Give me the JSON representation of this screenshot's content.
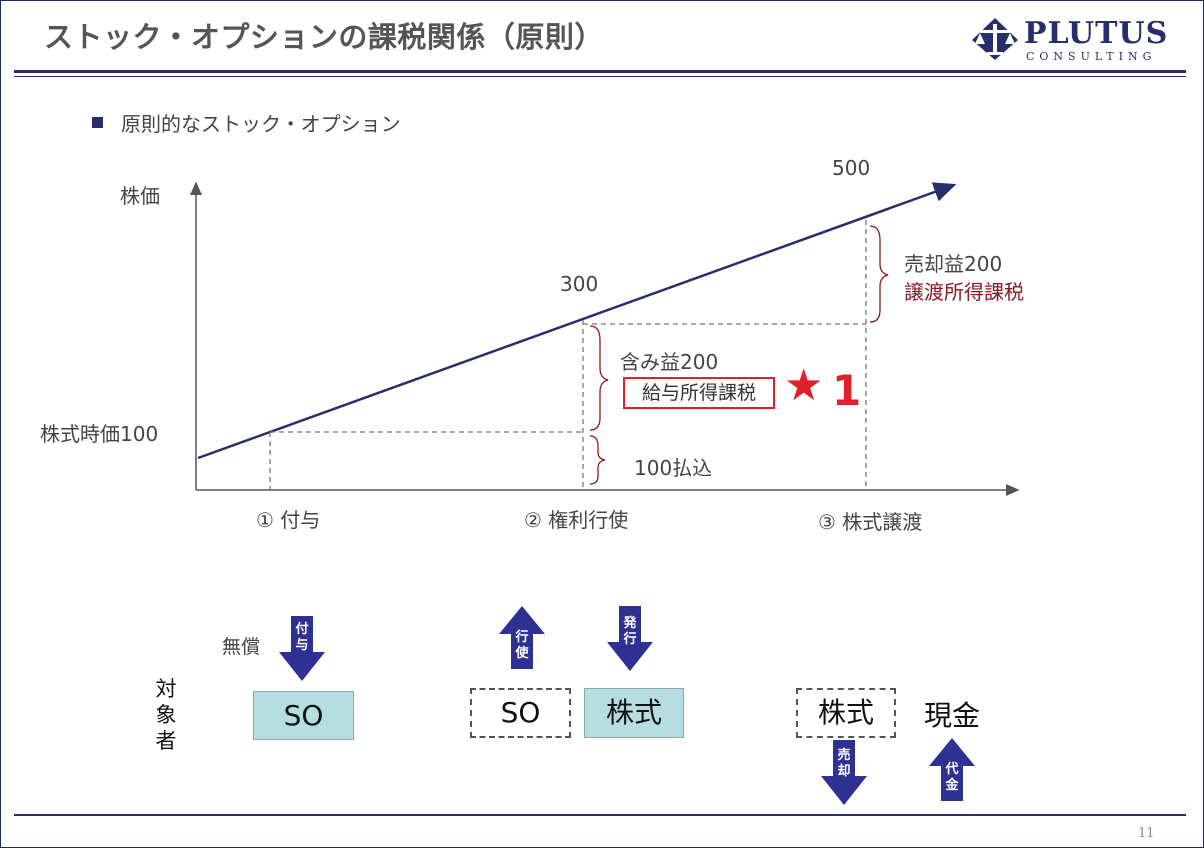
{
  "header": {
    "title": "ストック・オプションの課税関係（原則）",
    "logo": {
      "main": "PLUTUS",
      "sub": "CONSULTING"
    }
  },
  "bullet": "原則的なストック・オプション",
  "chart_data": {
    "type": "line",
    "ylabel": "株価",
    "points": [
      {
        "stage": "① 付与",
        "price": 100,
        "price_label": "株式時価100"
      },
      {
        "stage": "② 権利行使",
        "price": 300,
        "price_label": "300"
      },
      {
        "stage": "③ 株式譲渡",
        "price": 500,
        "price_label": "500"
      }
    ],
    "annotations": {
      "payment": "100払込",
      "unrealized_gain": "含み益200",
      "salary_tax": "給与所得課税",
      "star_mark": "★",
      "star_num": "1",
      "sale_gain": "売却益200",
      "transfer_tax": "譲渡所得課税"
    }
  },
  "flow": {
    "target_label": "対象者",
    "grant": {
      "free_label": "無償",
      "arrow_label": "付与",
      "box": "SO"
    },
    "exercise": {
      "arrow_up_label": "行使",
      "arrow_down_label": "発行",
      "box_dashed": "SO",
      "box_solid": "株式"
    },
    "transfer": {
      "box_dashed": "株式",
      "cash": "現金",
      "arrow_down_label": "売却",
      "arrow_up_label": "代金"
    }
  },
  "colors": {
    "navy": "#262e6b",
    "arrow": "#2e3192",
    "teal_box": "#b6dee0",
    "red": "#e2202b",
    "dark_red": "#8b1a24"
  },
  "page_number": "11"
}
